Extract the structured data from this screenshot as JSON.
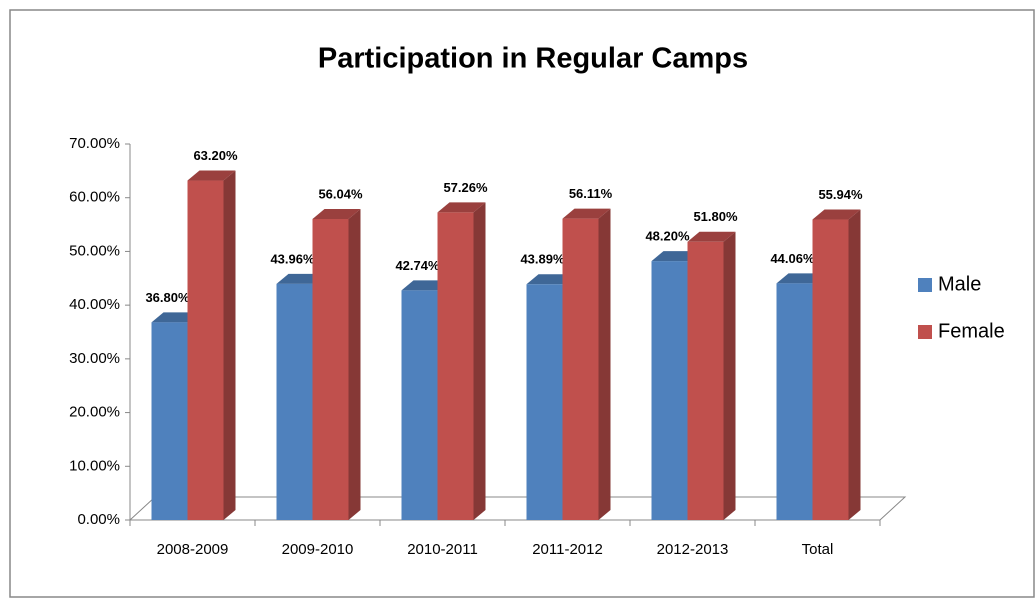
{
  "chart_data": {
    "type": "bar3d",
    "title": "Participation in Regular Camps",
    "categories": [
      "2008-2009",
      "2009-2010",
      "2010-2011",
      "2011-2012",
      "2012-2013",
      "Total"
    ],
    "series": [
      {
        "name": "Male",
        "color": "#4f81bd",
        "values": [
          36.8,
          43.96,
          42.74,
          43.89,
          48.2,
          44.06
        ],
        "value_labels": [
          "36.80%",
          "43.96%",
          "42.74%",
          "43.89%",
          "48.20%",
          "44.06%"
        ]
      },
      {
        "name": "Female",
        "color": "#c0504d",
        "values": [
          63.2,
          56.04,
          57.26,
          56.11,
          51.8,
          55.94
        ],
        "value_labels": [
          "63.20%",
          "56.04%",
          "57.26%",
          "56.11%",
          "51.80%",
          "55.94%"
        ]
      }
    ],
    "ylim": [
      0,
      70
    ],
    "yticks": [
      {
        "value": 0,
        "label": "0.00%"
      },
      {
        "value": 10,
        "label": "10.00%"
      },
      {
        "value": 20,
        "label": "20.00%"
      },
      {
        "value": 30,
        "label": "30.00%"
      },
      {
        "value": 40,
        "label": "40.00%"
      },
      {
        "value": 50,
        "label": "50.00%"
      },
      {
        "value": 60,
        "label": "60.00%"
      },
      {
        "value": 70,
        "label": "70.00%"
      }
    ],
    "grid": false,
    "legend": "right"
  }
}
